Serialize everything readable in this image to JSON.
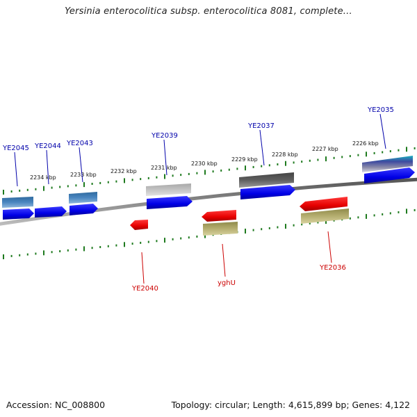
{
  "title": "Yersinia enterocolitica subsp. enterocolitica 8081, complete...",
  "footer": {
    "accession": "Accession: NC_008800",
    "topology": "Topology: circular; Length: 4,615,899 bp; Genes: 4,122"
  },
  "colors": {
    "forward_label": "#0000aa",
    "reverse_label": "#cc0000",
    "backbone": "#7a7a7a",
    "ticks": "#1e7a1e"
  },
  "kbp_ticks": [
    "2234 kbp",
    "2233 kbp",
    "2232 kbp",
    "2231 kbp",
    "2230 kbp",
    "2229 kbp",
    "2228 kbp",
    "2227 kbp",
    "2226 kbp"
  ],
  "gene_labels": {
    "ye2045": "YE2045",
    "ye2044": "YE2044",
    "ye2043": "YE2043",
    "ye2039": "YE2039",
    "ye2037": "YE2037",
    "ye2035": "YE2035",
    "ye2040": "YE2040",
    "yghu": "yghU",
    "ye2036": "YE2036"
  }
}
